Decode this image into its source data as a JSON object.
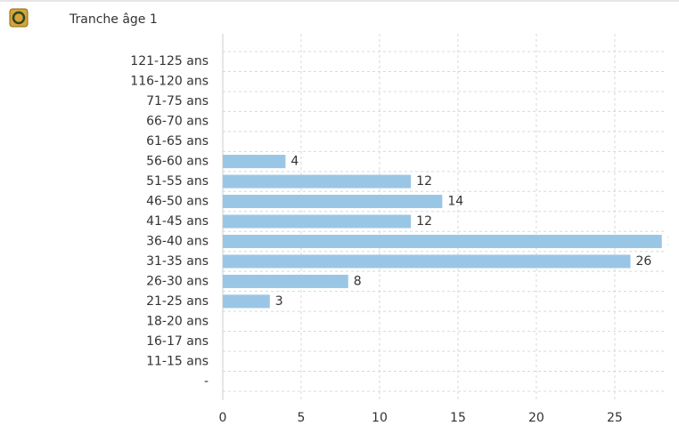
{
  "chart_data": {
    "type": "barh",
    "title": "Tranche âge 1",
    "categories": [
      "121-125 ans",
      "116-120 ans",
      "71-75 ans",
      "66-70 ans",
      "61-65 ans",
      "56-60 ans",
      "51-55 ans",
      "46-50 ans",
      "41-45 ans",
      "36-40 ans",
      "31-35 ans",
      "26-30 ans",
      "21-25 ans",
      "18-20 ans",
      "16-17 ans",
      "11-15 ans",
      "-"
    ],
    "values": [
      null,
      null,
      null,
      null,
      null,
      4,
      12,
      14,
      12,
      28,
      26,
      8,
      3,
      null,
      null,
      null,
      null
    ],
    "color": "#9ac6e6",
    "xlim": [
      0,
      28.3
    ],
    "xticks": [
      0,
      5,
      10,
      15,
      20,
      25
    ],
    "grid": true
  }
}
